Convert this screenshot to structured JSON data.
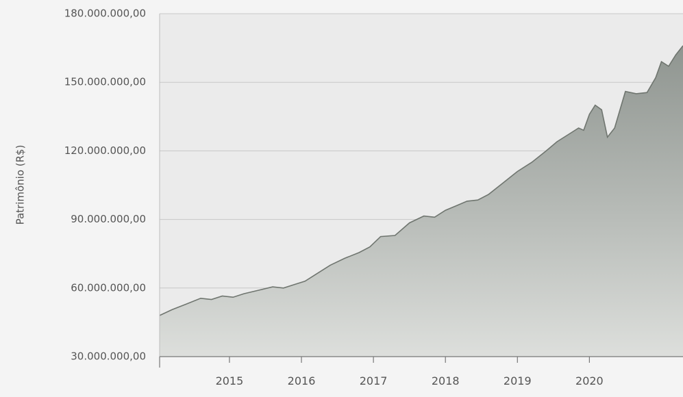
{
  "chart_data": {
    "type": "area",
    "title": "",
    "xlabel": "",
    "ylabel": "Patrimônio (R$)",
    "grid": true,
    "xlim": [
      2014.03,
      2021.3
    ],
    "ylim": [
      30000000,
      180000000
    ],
    "yticks": [
      30000000,
      60000000,
      90000000,
      120000000,
      150000000,
      180000000
    ],
    "ytick_labels": [
      "30.000.000,00",
      "60.000.000,00",
      "90.000.000,00",
      "120.000.000,00",
      "150.000.000,00",
      "180.000.000,00"
    ],
    "xticks": [
      2015,
      2016,
      2017,
      2018,
      2019,
      2020
    ],
    "xtick_labels": [
      "2015",
      "2016",
      "2017",
      "2018",
      "2019",
      "2020"
    ],
    "series": [
      {
        "x": [
          2014.03,
          2014.2,
          2014.4,
          2014.6,
          2014.75,
          2014.9,
          2015.05,
          2015.2,
          2015.4,
          2015.6,
          2015.75,
          2015.9,
          2016.05,
          2016.2,
          2016.4,
          2016.6,
          2016.8,
          2016.95,
          2017.1,
          2017.3,
          2017.5,
          2017.7,
          2017.85,
          2018.0,
          2018.15,
          2018.3,
          2018.45,
          2018.6,
          2018.8,
          2019.0,
          2019.2,
          2019.4,
          2019.55,
          2019.7,
          2019.85,
          2019.92,
          2020.0,
          2020.08,
          2020.17,
          2020.25,
          2020.35,
          2020.5,
          2020.65,
          2020.8,
          2020.92,
          2021.0,
          2021.1,
          2021.2,
          2021.3
        ],
        "y": [
          48000000,
          50500000,
          53000000,
          55500000,
          55000000,
          56500000,
          56000000,
          57500000,
          59000000,
          60500000,
          60000000,
          61500000,
          63000000,
          66000000,
          70000000,
          73000000,
          75500000,
          78000000,
          82500000,
          83000000,
          88500000,
          91500000,
          91000000,
          94000000,
          96000000,
          98000000,
          98500000,
          101000000,
          106000000,
          111000000,
          115000000,
          120000000,
          124000000,
          127000000,
          130000000,
          129000000,
          136000000,
          140000000,
          138000000,
          126000000,
          130000000,
          146000000,
          145000000,
          145500000,
          152000000,
          159000000,
          157000000,
          162000000,
          166000000
        ]
      }
    ]
  }
}
